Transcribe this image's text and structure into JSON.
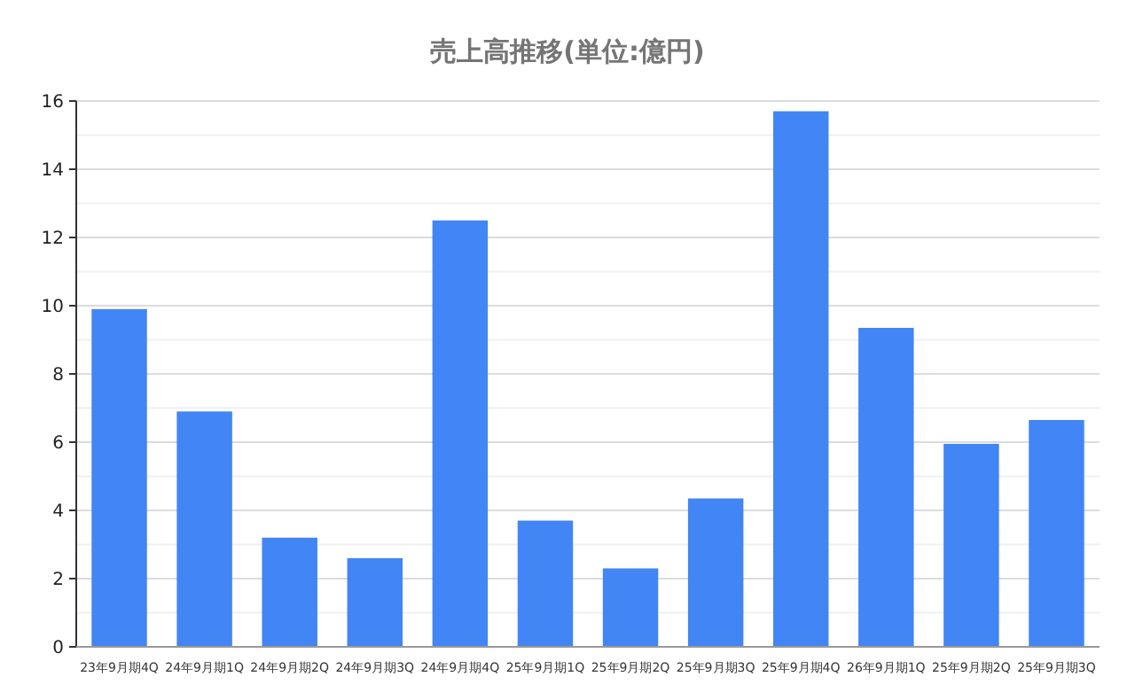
{
  "chart_data": {
    "type": "bar",
    "title": "売上高推移(単位:億円)",
    "categories": [
      "23年9月期4Q",
      "24年9月期1Q",
      "24年9月期2Q",
      "24年9月期3Q",
      "24年9月期4Q",
      "25年9月期1Q",
      "25年9月期2Q",
      "25年9月期3Q",
      "25年9月期4Q",
      "26年9月期1Q",
      "25年9月期2Q",
      "25年9月期3Q"
    ],
    "values": [
      9.9,
      6.9,
      3.2,
      2.6,
      12.5,
      3.7,
      2.3,
      4.35,
      15.7,
      9.35,
      5.95,
      6.65
    ],
    "color": "#4285f4",
    "ylim": [
      0,
      16
    ],
    "yticks": [
      0,
      {
        "value": 1,
        "label": null
      },
      2,
      {
        "value": 3,
        "label": null
      },
      4,
      {
        "value": 5,
        "label": null
      },
      6,
      {
        "value": 7,
        "label": null
      },
      8,
      {
        "value": 9,
        "label": null
      },
      10,
      {
        "value": 11,
        "label": null
      },
      12,
      {
        "value": 13,
        "label": null
      },
      14,
      {
        "value": 15,
        "label": null
      },
      16
    ],
    "grid": true
  }
}
